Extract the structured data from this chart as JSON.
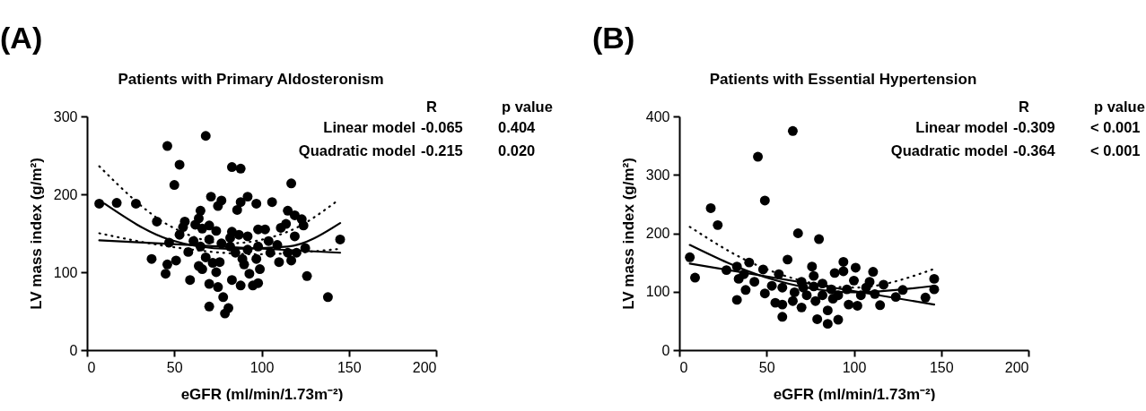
{
  "chart_data": [
    {
      "type": "scatter",
      "title": "Patients with Primary Aldosteronism",
      "xlabel": "eGFR (ml/min/1.73m⁻²)",
      "ylabel": "LV mass index (g/m²)",
      "xlim": [
        0,
        200
      ],
      "xticks": [
        0,
        50,
        100,
        150,
        200
      ],
      "ylim": [
        0,
        300
      ],
      "yticks": [
        0,
        100,
        200,
        300
      ],
      "annotations": [
        "(A)",
        "R",
        "p value",
        "Linear model",
        "-0.065",
        "0.404",
        "Quadratic model",
        "-0.215",
        "0.020"
      ],
      "series": [
        {
          "color": "#000000",
          "marker": "circle",
          "x": [
            7,
            17,
            28,
            40,
            37,
            46,
            53,
            50,
            68,
            83,
            88,
            117,
            106,
            97,
            92,
            88,
            77,
            71,
            75,
            86,
            65,
            64,
            56,
            55,
            62,
            66,
            70,
            74,
            98,
            102,
            111,
            114,
            115,
            119,
            123,
            124,
            119,
            104,
            109,
            92,
            83,
            77,
            70,
            53,
            47,
            58,
            51,
            46,
            45,
            59,
            64,
            68,
            72,
            74,
            70,
            75,
            78,
            70,
            81,
            79,
            83,
            88,
            85,
            90,
            93,
            95,
            98,
            99,
            97,
            92,
            105,
            110,
            115,
            117,
            120,
            125,
            126,
            138,
            145,
            82,
            76,
            65,
            61,
            66,
            87,
            98,
            89,
            82
          ],
          "values": [
            188,
            189,
            188,
            165,
            117,
            262,
            238,
            212,
            275,
            235,
            233,
            214,
            190,
            188,
            197,
            190,
            192,
            197,
            185,
            180,
            179,
            169,
            165,
            158,
            161,
            156,
            160,
            153,
            155,
            155,
            157,
            162,
            179,
            173,
            168,
            160,
            146,
            140,
            135,
            146,
            152,
            137,
            142,
            148,
            138,
            126,
            115,
            110,
            98,
            90,
            108,
            119,
            112,
            100,
            85,
            81,
            68,
            56,
            54,
            47,
            90,
            83,
            125,
            110,
            98,
            83,
            86,
            104,
            117,
            129,
            125,
            113,
            125,
            115,
            125,
            131,
            95,
            68,
            142,
            133,
            113,
            133,
            140,
            104,
            148,
            133,
            117,
            144
          ]
        },
        {
          "type": "line",
          "color": "#000000",
          "line_style": "solid",
          "x": [
            7,
            145
          ],
          "values": [
            141,
            125
          ]
        },
        {
          "type": "line",
          "color": "#000000",
          "line_style": "solid",
          "x": [
            10,
            47,
            81,
            115,
            145
          ],
          "values": [
            188,
            142,
            130,
            133,
            163
          ]
        },
        {
          "type": "line",
          "color": "#000000",
          "line_style": "dotted",
          "x": [
            7,
            47,
            81,
            115,
            143
          ],
          "values": [
            236,
            160,
            137,
            152,
            191
          ]
        },
        {
          "type": "line",
          "color": "#000000",
          "line_style": "dotted",
          "x": [
            7,
            47,
            98,
            145
          ],
          "values": [
            150,
            133,
            123,
            130
          ]
        }
      ]
    },
    {
      "type": "scatter",
      "title": "Patients with Essential Hypertension",
      "xlabel": "eGFR (ml/min/1.73m⁻²)",
      "ylabel": "LV mass index (g/m²)",
      "xlim": [
        0,
        200
      ],
      "xticks": [
        0,
        50,
        100,
        150,
        200
      ],
      "ylim": [
        0,
        400
      ],
      "yticks": [
        0,
        100,
        200,
        300,
        400
      ],
      "annotations": [
        "(B)",
        "R",
        "p value",
        "Linear model",
        "-0.309",
        "< 0.001",
        "Quadratic model",
        "-0.364",
        "< 0.001"
      ],
      "series": [
        {
          "color": "#000000",
          "marker": "circle",
          "x": [
            65,
            45,
            49,
            18,
            22,
            68,
            80,
            6,
            9,
            62,
            40,
            48,
            27,
            33,
            37,
            34,
            43,
            38,
            33,
            49,
            53,
            57,
            59,
            55,
            59,
            59,
            70,
            76,
            77,
            73,
            70,
            78,
            79,
            85,
            91,
            85,
            89,
            94,
            94,
            101,
            100,
            96,
            91,
            82,
            87,
            97,
            104,
            107,
            111,
            109,
            117,
            115,
            112,
            128,
            124,
            141,
            146,
            146,
            66,
            77,
            65,
            71,
            88,
            102,
            82
          ],
          "values": [
            375,
            331,
            256,
            243,
            214,
            200,
            190,
            159,
            124,
            155,
            150,
            138,
            137,
            143,
            130,
            122,
            117,
            103,
            86,
            97,
            110,
            130,
            107,
            81,
            78,
            57,
            117,
            143,
            127,
            94,
            73,
            84,
            53,
            45,
            52,
            68,
            132,
            151,
            135,
            141,
            119,
            104,
            94,
            114,
            104,
            78,
            94,
            107,
            134,
            117,
            112,
            77,
            96,
            103,
            91,
            90,
            122,
            104,
            99,
            109,
            84,
            107,
            88,
            76,
            94
          ]
        },
        {
          "type": "line",
          "color": "#000000",
          "line_style": "solid",
          "x": [
            6,
            146
          ],
          "values": [
            148,
            78
          ]
        },
        {
          "type": "line",
          "color": "#000000",
          "line_style": "solid",
          "x": [
            6,
            49,
            100,
            146
          ],
          "values": [
            180,
            125,
            99,
            110
          ]
        },
        {
          "type": "line",
          "color": "#000000",
          "line_style": "dotted",
          "x": [
            6,
            41,
            100,
            146
          ],
          "values": [
            211,
            150,
            107,
            139
          ]
        }
      ]
    }
  ]
}
